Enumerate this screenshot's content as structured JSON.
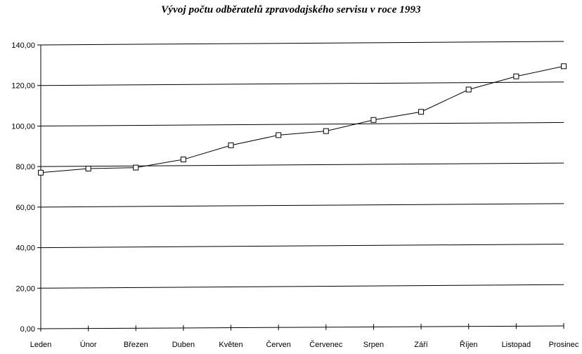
{
  "chart_data": {
    "type": "line",
    "title": "Vývoj počtu odběratelů zpravodajského servisu v roce 1993",
    "xlabel": "",
    "ylabel": "",
    "categories": [
      "Leden",
      "Únor",
      "Březen",
      "Duben",
      "Květen",
      "Červen",
      "Červenec",
      "Srpen",
      "Září",
      "Říjen",
      "Listopad",
      "Prosinec"
    ],
    "series": [
      {
        "values": [
          77,
          79,
          79.5,
          83.5,
          90.5,
          95.5,
          97.5,
          103,
          107,
          118,
          124.5,
          129.5
        ],
        "marker": "square",
        "color": "#000000"
      }
    ],
    "ylim": [
      0,
      140
    ],
    "yticks": [
      "0,00",
      "20,00",
      "40,00",
      "60,00",
      "80,00",
      "100,00",
      "120,00",
      "140,00"
    ],
    "grid": true,
    "legend": "none"
  }
}
